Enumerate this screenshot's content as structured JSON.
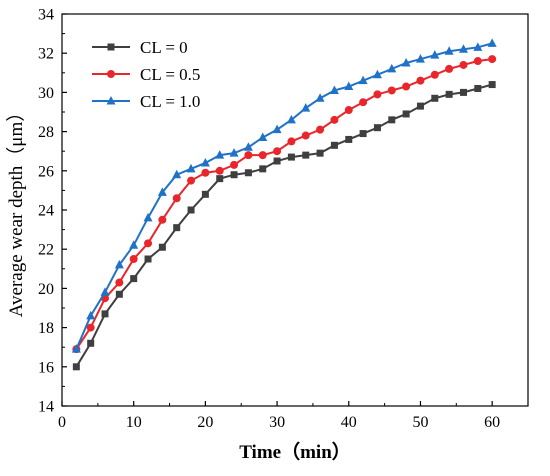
{
  "chart_data": {
    "type": "line",
    "title": "",
    "xlabel": "Time（min）",
    "ylabel": "Average wear depth（μm）",
    "xlim": [
      0,
      65
    ],
    "ylim": [
      14,
      34
    ],
    "xticks": [
      0,
      10,
      20,
      30,
      40,
      50,
      60
    ],
    "yticks": [
      14,
      16,
      18,
      20,
      22,
      24,
      26,
      28,
      30,
      32,
      34
    ],
    "grid": false,
    "legend_position": "top-left",
    "x": [
      2,
      4,
      6,
      8,
      10,
      12,
      14,
      16,
      18,
      20,
      22,
      24,
      26,
      28,
      30,
      32,
      34,
      36,
      38,
      40,
      42,
      44,
      46,
      48,
      50,
      52,
      54,
      56,
      58,
      60
    ],
    "series": [
      {
        "name": "CL = 0",
        "color": "#3f3f3f",
        "marker": "square",
        "values": [
          16.0,
          17.2,
          18.7,
          19.7,
          20.5,
          21.5,
          22.1,
          23.1,
          24.0,
          24.8,
          25.6,
          25.8,
          25.9,
          26.1,
          26.5,
          26.7,
          26.8,
          26.9,
          27.3,
          27.6,
          27.9,
          28.2,
          28.6,
          28.9,
          29.3,
          29.7,
          29.9,
          30.0,
          30.2,
          30.4
        ]
      },
      {
        "name": "CL = 0.5",
        "color": "#e8262b",
        "marker": "circle",
        "values": [
          16.9,
          18.0,
          19.5,
          20.3,
          21.5,
          22.3,
          23.5,
          24.6,
          25.5,
          25.9,
          26.0,
          26.3,
          26.8,
          26.8,
          27.0,
          27.5,
          27.8,
          28.1,
          28.6,
          29.1,
          29.5,
          29.9,
          30.1,
          30.3,
          30.6,
          30.9,
          31.2,
          31.4,
          31.6,
          31.7
        ]
      },
      {
        "name": "CL = 1.0",
        "color": "#1f72c7",
        "marker": "triangle",
        "values": [
          16.9,
          18.6,
          19.8,
          21.2,
          22.2,
          23.6,
          24.9,
          25.8,
          26.1,
          26.4,
          26.8,
          26.9,
          27.2,
          27.7,
          28.1,
          28.6,
          29.2,
          29.7,
          30.1,
          30.3,
          30.6,
          30.9,
          31.2,
          31.5,
          31.7,
          31.9,
          32.1,
          32.2,
          32.3,
          32.5
        ]
      }
    ]
  }
}
